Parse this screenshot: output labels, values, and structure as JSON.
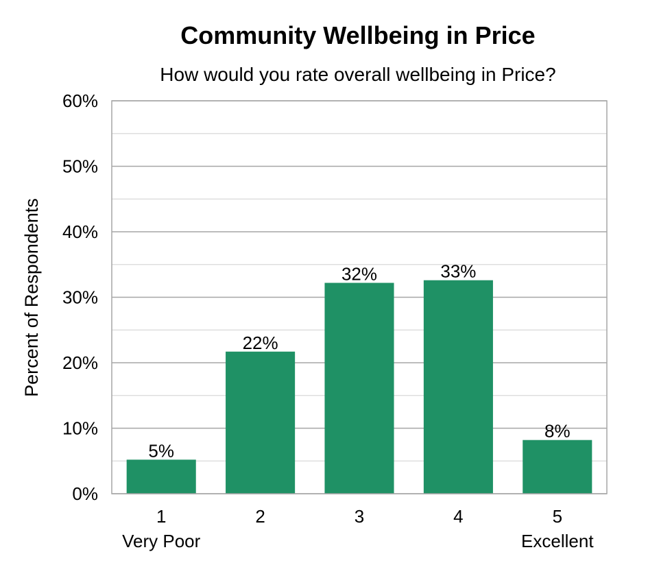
{
  "chart_data": {
    "type": "bar",
    "title": "Community Wellbeing in Price",
    "subtitle": "How would you rate overall wellbeing in Price?",
    "ylabel": "Percent of Respondents",
    "xlabel": "",
    "categories": [
      "1",
      "2",
      "3",
      "4",
      "5"
    ],
    "category_sublabels": [
      "Very Poor",
      "",
      "",
      "",
      "Excellent"
    ],
    "values": [
      5.2,
      21.7,
      32.2,
      32.6,
      8.2
    ],
    "data_labels": [
      "5%",
      "22%",
      "32%",
      "33%",
      "8%"
    ],
    "ylim": [
      0,
      60
    ],
    "yticks": [
      0,
      10,
      20,
      30,
      40,
      50,
      60
    ],
    "ytick_labels": [
      "0%",
      "10%",
      "20%",
      "30%",
      "40%",
      "50%",
      "60%"
    ],
    "minor_gridlines": true,
    "grid": true,
    "legend": "none",
    "colors": {
      "bar": "#1f9165",
      "major_grid": "#a6a6a6",
      "minor_grid": "#d9d9d9",
      "frame": "#a6a6a6"
    }
  }
}
